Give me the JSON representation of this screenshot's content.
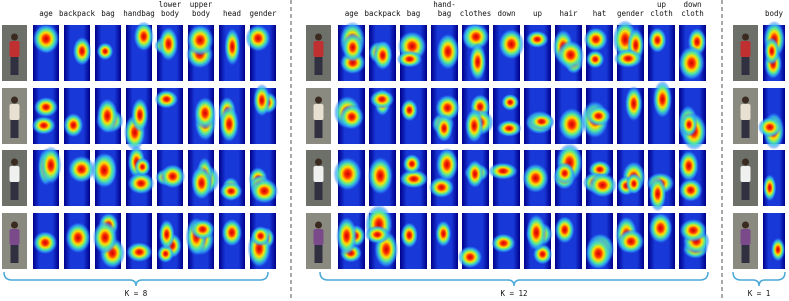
{
  "panels": [
    {
      "columns": [
        [
          "age"
        ],
        [
          "backpack"
        ],
        [
          "bag"
        ],
        [
          "handbag"
        ],
        [
          "lower",
          "body"
        ],
        [
          "upper",
          "body"
        ],
        [
          "head"
        ],
        [
          "gender"
        ]
      ],
      "k_label": "K = 8"
    },
    {
      "columns": [
        [
          "age"
        ],
        [
          "backpack"
        ],
        [
          "bag"
        ],
        [
          "hand-",
          "bag"
        ],
        [
          "clothes"
        ],
        [
          "down"
        ],
        [
          "up"
        ],
        [
          "hair"
        ],
        [
          "hat"
        ],
        [
          "gender"
        ],
        [
          "up",
          "cloth"
        ],
        [
          "down",
          "cloth"
        ]
      ],
      "k_label": "K = 12"
    },
    {
      "columns": [
        [
          "body"
        ]
      ],
      "k_label": "K = 1"
    }
  ]
}
